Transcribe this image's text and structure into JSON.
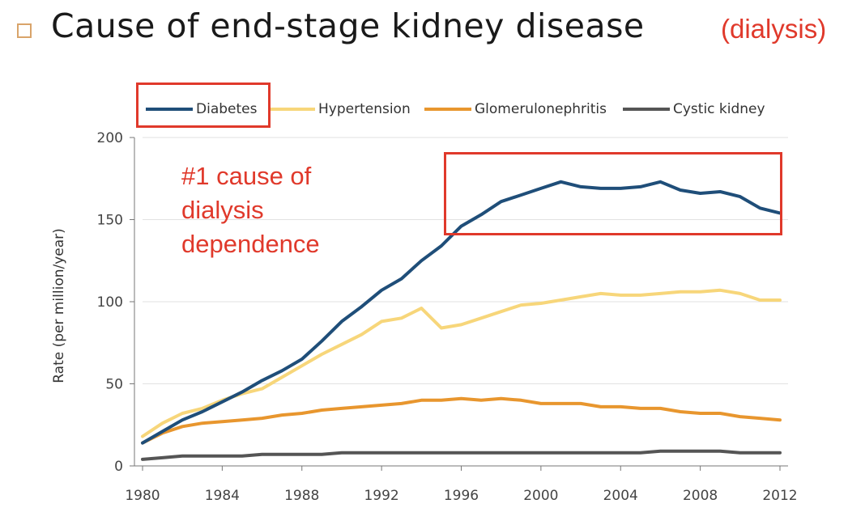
{
  "slide": {
    "title": "Cause of end-stage kidney disease",
    "subtitle": "(dialysis)",
    "annotation": "#1 cause of\ndialysis\ndependence",
    "colors": {
      "highlight": "#e0392b",
      "bullet": "#d9a46a"
    },
    "bullet_icon": "square-bullet-icon"
  },
  "chart_data": {
    "type": "line",
    "title": "",
    "xlabel": "",
    "ylabel": "Rate (per million/year)",
    "xlim": [
      1980,
      2012
    ],
    "ylim": [
      0,
      200
    ],
    "x_ticks": [
      1980,
      1984,
      1988,
      1992,
      1996,
      2000,
      2004,
      2008,
      2012
    ],
    "y_ticks": [
      0,
      50,
      100,
      150,
      200
    ],
    "grid": "horizontal",
    "legend_position": "top",
    "x": [
      1980,
      1981,
      1982,
      1983,
      1984,
      1985,
      1986,
      1987,
      1988,
      1989,
      1990,
      1991,
      1992,
      1993,
      1994,
      1995,
      1996,
      1997,
      1998,
      1999,
      2000,
      2001,
      2002,
      2003,
      2004,
      2005,
      2006,
      2007,
      2008,
      2009,
      2010,
      2011,
      2012
    ],
    "series": [
      {
        "name": "Diabetes",
        "color": "#1f4e79",
        "values": [
          14,
          21,
          28,
          33,
          39,
          45,
          52,
          58,
          65,
          76,
          88,
          97,
          107,
          114,
          125,
          134,
          146,
          153,
          161,
          165,
          169,
          173,
          170,
          169,
          169,
          170,
          173,
          168,
          166,
          167,
          164,
          157,
          154
        ]
      },
      {
        "name": "Hypertension",
        "color": "#f7d67a",
        "values": [
          18,
          26,
          32,
          35,
          40,
          44,
          47,
          54,
          61,
          68,
          74,
          80,
          88,
          90,
          96,
          84,
          86,
          90,
          94,
          98,
          99,
          101,
          103,
          105,
          104,
          104,
          105,
          106,
          106,
          107,
          105,
          101,
          101
        ]
      },
      {
        "name": "Glomerulonephritis",
        "color": "#e8962e",
        "values": [
          14,
          20,
          24,
          26,
          27,
          28,
          29,
          31,
          32,
          34,
          35,
          36,
          37,
          38,
          40,
          40,
          41,
          40,
          41,
          40,
          38,
          38,
          38,
          36,
          36,
          35,
          35,
          33,
          32,
          32,
          30,
          29,
          28
        ]
      },
      {
        "name": "Cystic kidney",
        "color": "#555555",
        "values": [
          4,
          5,
          6,
          6,
          6,
          6,
          7,
          7,
          7,
          7,
          8,
          8,
          8,
          8,
          8,
          8,
          8,
          8,
          8,
          8,
          8,
          8,
          8,
          8,
          8,
          8,
          9,
          9,
          9,
          9,
          8,
          8,
          8
        ]
      }
    ],
    "highlight_range": {
      "x": [
        1995,
        2012
      ],
      "y": [
        142,
        190
      ]
    }
  }
}
